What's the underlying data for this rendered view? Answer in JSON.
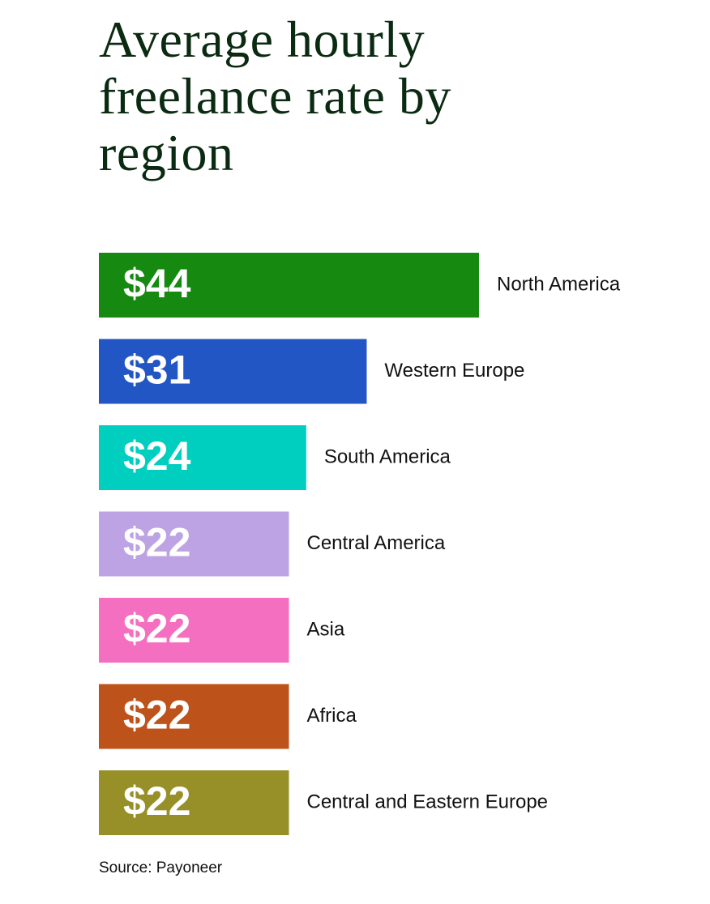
{
  "chart_data": {
    "type": "bar",
    "orientation": "horizontal",
    "title": "Average hourly freelance rate by region",
    "categories": [
      "North America",
      "Western Europe",
      "South America",
      "Central America",
      "Asia",
      "Africa",
      "Central and Eastern Europe"
    ],
    "values": [
      44,
      31,
      24,
      22,
      22,
      22,
      22
    ],
    "value_labels": [
      "$44",
      "$31",
      "$24",
      "$22",
      "$22",
      "$22",
      "$22"
    ],
    "colors": [
      "#168a10",
      "#2256c4",
      "#00cfc0",
      "#bda3e3",
      "#f46fc0",
      "#bd521a",
      "#979029"
    ],
    "source": "Source: Payoneer"
  }
}
